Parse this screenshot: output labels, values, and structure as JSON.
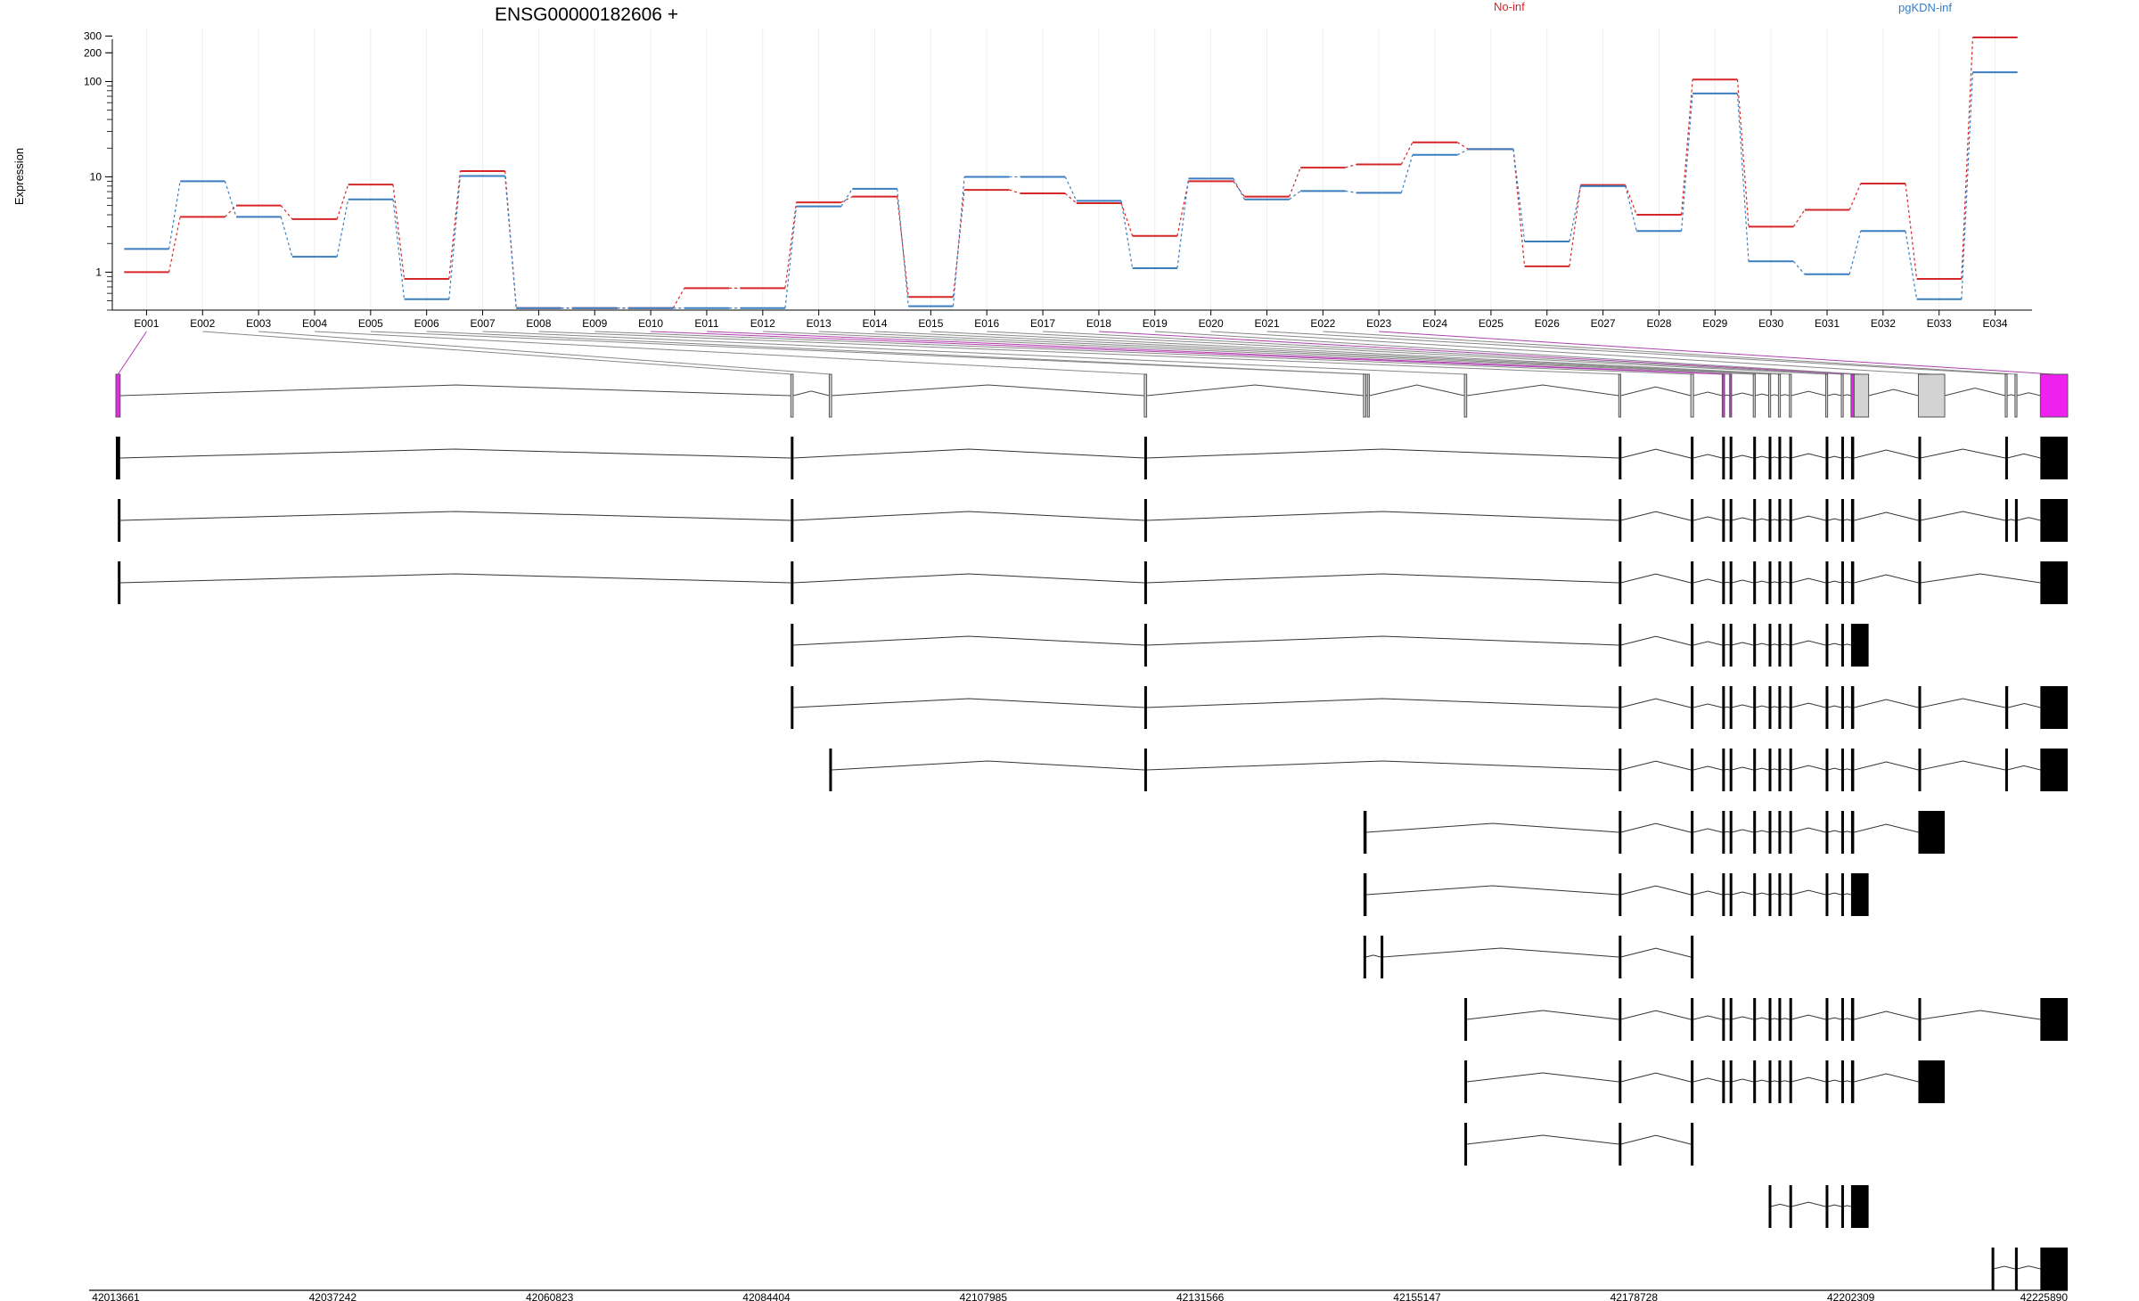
{
  "chart_data": {
    "type": "line",
    "title": "ENSG00000182606 +",
    "ylabel": "Expression",
    "yscale": "log",
    "ylim": [
      0.4,
      330
    ],
    "yticks": [
      1,
      10,
      100,
      200,
      300
    ],
    "grid": "vertical",
    "legend": "top",
    "categories": [
      "E001",
      "E002",
      "E003",
      "E004",
      "E005",
      "E006",
      "E007",
      "E008",
      "E009",
      "E010",
      "E011",
      "E012",
      "E013",
      "E014",
      "E015",
      "E016",
      "E017",
      "E018",
      "E019",
      "E020",
      "E021",
      "E022",
      "E023",
      "E024",
      "E025",
      "E026",
      "E027",
      "E028",
      "E029",
      "E030",
      "E031",
      "E032",
      "E033",
      "E034"
    ],
    "series": [
      {
        "name": "No-inf",
        "color": "#d62728",
        "values": [
          1.0,
          3.8,
          5.0,
          3.6,
          8.3,
          0.85,
          11.5,
          0.42,
          0.42,
          0.42,
          0.68,
          0.68,
          5.4,
          6.2,
          0.55,
          7.3,
          6.7,
          5.3,
          2.4,
          9.0,
          6.2,
          12.5,
          13.5,
          23.0,
          19.5,
          1.15,
          8.2,
          4.0,
          105,
          3.0,
          4.5,
          8.5,
          0.85,
          290
        ]
      },
      {
        "name": "pgKDN-inf",
        "color": "#3a7dc0",
        "values": [
          1.75,
          9.0,
          3.8,
          1.45,
          5.8,
          0.52,
          10.2,
          0.42,
          0.42,
          0.42,
          0.42,
          0.42,
          4.9,
          7.5,
          0.44,
          10.0,
          10.0,
          5.6,
          1.1,
          9.6,
          5.8,
          7.1,
          6.8,
          17.0,
          19.5,
          2.1,
          8.0,
          2.7,
          75,
          1.3,
          0.95,
          2.7,
          0.52,
          125
        ]
      }
    ],
    "gene_coordinates": {
      "range": [
        42013661,
        42225890
      ],
      "tick_labels": [
        "42013661",
        "42037242",
        "42060823",
        "42084404",
        "42107985",
        "42131566",
        "42155147",
        "42178728",
        "42202309",
        "42225890"
      ]
    }
  },
  "gene_model": {
    "highlight_color": "#ee22ee",
    "exon_bin_color": "#d3d3d3",
    "exon_bins": [
      [
        0.0,
        0.0022,
        "h"
      ],
      [
        0.3458,
        0.347,
        "n"
      ],
      [
        0.3655,
        0.3667,
        "n"
      ],
      [
        0.5269,
        0.5281,
        "n"
      ],
      [
        0.6392,
        0.6404,
        "n"
      ],
      [
        0.6412,
        0.6422,
        "n"
      ],
      [
        0.6909,
        0.6921,
        "n"
      ],
      [
        0.77,
        0.771,
        "n"
      ],
      [
        0.8069,
        0.8083,
        "n"
      ],
      [
        0.823,
        0.8242,
        "h"
      ],
      [
        0.8268,
        0.8278,
        "h"
      ],
      [
        0.8389,
        0.8399,
        "n"
      ],
      [
        0.8468,
        0.8478,
        "n"
      ],
      [
        0.8518,
        0.8528,
        "n"
      ],
      [
        0.8574,
        0.8584,
        "n"
      ],
      [
        0.876,
        0.877,
        "n"
      ],
      [
        0.884,
        0.885,
        "n"
      ],
      [
        0.889,
        0.8906,
        "h"
      ],
      [
        0.8906,
        0.898,
        "n"
      ],
      [
        0.9235,
        0.937,
        "n"
      ],
      [
        0.968,
        0.969,
        "n"
      ],
      [
        0.973,
        0.974,
        "n"
      ],
      [
        0.986,
        1.0,
        "h"
      ]
    ],
    "transcripts": [
      {
        "exons": [
          [
            0.0,
            0.0022
          ],
          [
            0.3458,
            0.347
          ],
          [
            0.5269,
            0.5281
          ],
          [
            0.77,
            0.771
          ],
          [
            0.8069,
            0.8083
          ],
          [
            0.823,
            0.8242
          ],
          [
            0.8268,
            0.8278
          ],
          [
            0.8389,
            0.8399
          ],
          [
            0.8468,
            0.8478
          ],
          [
            0.8518,
            0.8528
          ],
          [
            0.8574,
            0.8584
          ],
          [
            0.876,
            0.877
          ],
          [
            0.884,
            0.885
          ],
          [
            0.889,
            0.8906
          ],
          [
            0.9235,
            0.9245
          ],
          [
            0.968,
            0.969
          ],
          [
            0.986,
            1.0
          ]
        ]
      },
      {
        "exons": [
          [
            0.001,
            0.0022
          ],
          [
            0.3458,
            0.347
          ],
          [
            0.5269,
            0.5281
          ],
          [
            0.77,
            0.771
          ],
          [
            0.8069,
            0.8083
          ],
          [
            0.823,
            0.8242
          ],
          [
            0.8268,
            0.8278
          ],
          [
            0.8389,
            0.8399
          ],
          [
            0.8468,
            0.8478
          ],
          [
            0.8518,
            0.8528
          ],
          [
            0.8574,
            0.8584
          ],
          [
            0.876,
            0.877
          ],
          [
            0.884,
            0.885
          ],
          [
            0.889,
            0.8906
          ],
          [
            0.9235,
            0.9245
          ],
          [
            0.968,
            0.969
          ],
          [
            0.973,
            0.974
          ],
          [
            0.986,
            1.0
          ]
        ]
      },
      {
        "exons": [
          [
            0.001,
            0.0022
          ],
          [
            0.3458,
            0.347
          ],
          [
            0.5269,
            0.5281
          ],
          [
            0.77,
            0.771
          ],
          [
            0.8069,
            0.8083
          ],
          [
            0.823,
            0.8242
          ],
          [
            0.8268,
            0.8278
          ],
          [
            0.8389,
            0.8399
          ],
          [
            0.8468,
            0.8478
          ],
          [
            0.8518,
            0.8528
          ],
          [
            0.8574,
            0.8584
          ],
          [
            0.876,
            0.877
          ],
          [
            0.884,
            0.885
          ],
          [
            0.889,
            0.8906
          ],
          [
            0.9235,
            0.9245
          ],
          [
            0.986,
            1.0
          ]
        ]
      },
      {
        "exons": [
          [
            0.3458,
            0.347
          ],
          [
            0.5269,
            0.5281
          ],
          [
            0.77,
            0.771
          ],
          [
            0.8069,
            0.8083
          ],
          [
            0.823,
            0.8242
          ],
          [
            0.8268,
            0.8278
          ],
          [
            0.8389,
            0.8399
          ],
          [
            0.8468,
            0.8478
          ],
          [
            0.8518,
            0.8528
          ],
          [
            0.8574,
            0.8584
          ],
          [
            0.876,
            0.877
          ],
          [
            0.884,
            0.885
          ],
          [
            0.889,
            0.898
          ]
        ]
      },
      {
        "exons": [
          [
            0.3458,
            0.347
          ],
          [
            0.5269,
            0.5281
          ],
          [
            0.77,
            0.771
          ],
          [
            0.8069,
            0.8083
          ],
          [
            0.823,
            0.8242
          ],
          [
            0.8268,
            0.8278
          ],
          [
            0.8389,
            0.8399
          ],
          [
            0.8468,
            0.8478
          ],
          [
            0.8518,
            0.8528
          ],
          [
            0.8574,
            0.8584
          ],
          [
            0.876,
            0.877
          ],
          [
            0.884,
            0.885
          ],
          [
            0.889,
            0.8906
          ],
          [
            0.9235,
            0.9245
          ],
          [
            0.968,
            0.9695
          ],
          [
            0.986,
            1.0
          ]
        ]
      },
      {
        "exons": [
          [
            0.3655,
            0.3667
          ],
          [
            0.5269,
            0.5281
          ],
          [
            0.77,
            0.771
          ],
          [
            0.8069,
            0.8083
          ],
          [
            0.823,
            0.8242
          ],
          [
            0.8268,
            0.8278
          ],
          [
            0.8389,
            0.8399
          ],
          [
            0.8468,
            0.8478
          ],
          [
            0.8518,
            0.8528
          ],
          [
            0.8574,
            0.8584
          ],
          [
            0.876,
            0.877
          ],
          [
            0.884,
            0.885
          ],
          [
            0.889,
            0.8906
          ],
          [
            0.9235,
            0.9245
          ],
          [
            0.968,
            0.969
          ],
          [
            0.986,
            1.0
          ]
        ]
      },
      {
        "exons": [
          [
            0.6392,
            0.6408
          ],
          [
            0.77,
            0.771
          ],
          [
            0.8069,
            0.8083
          ],
          [
            0.823,
            0.8242
          ],
          [
            0.8268,
            0.8278
          ],
          [
            0.8389,
            0.8399
          ],
          [
            0.8468,
            0.8478
          ],
          [
            0.8518,
            0.8528
          ],
          [
            0.8574,
            0.8584
          ],
          [
            0.876,
            0.877
          ],
          [
            0.884,
            0.885
          ],
          [
            0.889,
            0.8906
          ],
          [
            0.9235,
            0.937
          ]
        ]
      },
      {
        "exons": [
          [
            0.6392,
            0.6408
          ],
          [
            0.77,
            0.771
          ],
          [
            0.8069,
            0.8083
          ],
          [
            0.823,
            0.8242
          ],
          [
            0.8268,
            0.8278
          ],
          [
            0.8389,
            0.8399
          ],
          [
            0.8468,
            0.8478
          ],
          [
            0.8518,
            0.8528
          ],
          [
            0.8574,
            0.8584
          ],
          [
            0.876,
            0.877
          ],
          [
            0.884,
            0.885
          ],
          [
            0.889,
            0.898
          ]
        ]
      },
      {
        "exons": [
          [
            0.6392,
            0.6404
          ],
          [
            0.648,
            0.649
          ],
          [
            0.77,
            0.771
          ],
          [
            0.8069,
            0.8083
          ]
        ]
      },
      {
        "exons": [
          [
            0.6909,
            0.6921
          ],
          [
            0.77,
            0.771
          ],
          [
            0.8069,
            0.8083
          ],
          [
            0.823,
            0.8242
          ],
          [
            0.8268,
            0.8278
          ],
          [
            0.8389,
            0.8399
          ],
          [
            0.8468,
            0.8478
          ],
          [
            0.8518,
            0.8528
          ],
          [
            0.8574,
            0.8584
          ],
          [
            0.876,
            0.877
          ],
          [
            0.884,
            0.885
          ],
          [
            0.889,
            0.8906
          ],
          [
            0.9235,
            0.9245
          ],
          [
            0.986,
            1.0
          ]
        ]
      },
      {
        "exons": [
          [
            0.6909,
            0.6921
          ],
          [
            0.77,
            0.771
          ],
          [
            0.8069,
            0.8083
          ],
          [
            0.823,
            0.8242
          ],
          [
            0.8268,
            0.8278
          ],
          [
            0.8389,
            0.8399
          ],
          [
            0.8468,
            0.8478
          ],
          [
            0.8518,
            0.8528
          ],
          [
            0.8574,
            0.8584
          ],
          [
            0.876,
            0.877
          ],
          [
            0.884,
            0.885
          ],
          [
            0.889,
            0.8906
          ],
          [
            0.9235,
            0.937
          ]
        ]
      },
      {
        "exons": [
          [
            0.6909,
            0.6921
          ],
          [
            0.77,
            0.771
          ],
          [
            0.8069,
            0.8083
          ]
        ]
      },
      {
        "exons": [
          [
            0.8468,
            0.8478
          ],
          [
            0.8574,
            0.8584
          ],
          [
            0.876,
            0.877
          ],
          [
            0.884,
            0.885
          ],
          [
            0.889,
            0.898
          ]
        ]
      },
      {
        "exons": [
          [
            0.961,
            0.962
          ],
          [
            0.973,
            0.974
          ],
          [
            0.986,
            1.0
          ]
        ]
      }
    ]
  }
}
